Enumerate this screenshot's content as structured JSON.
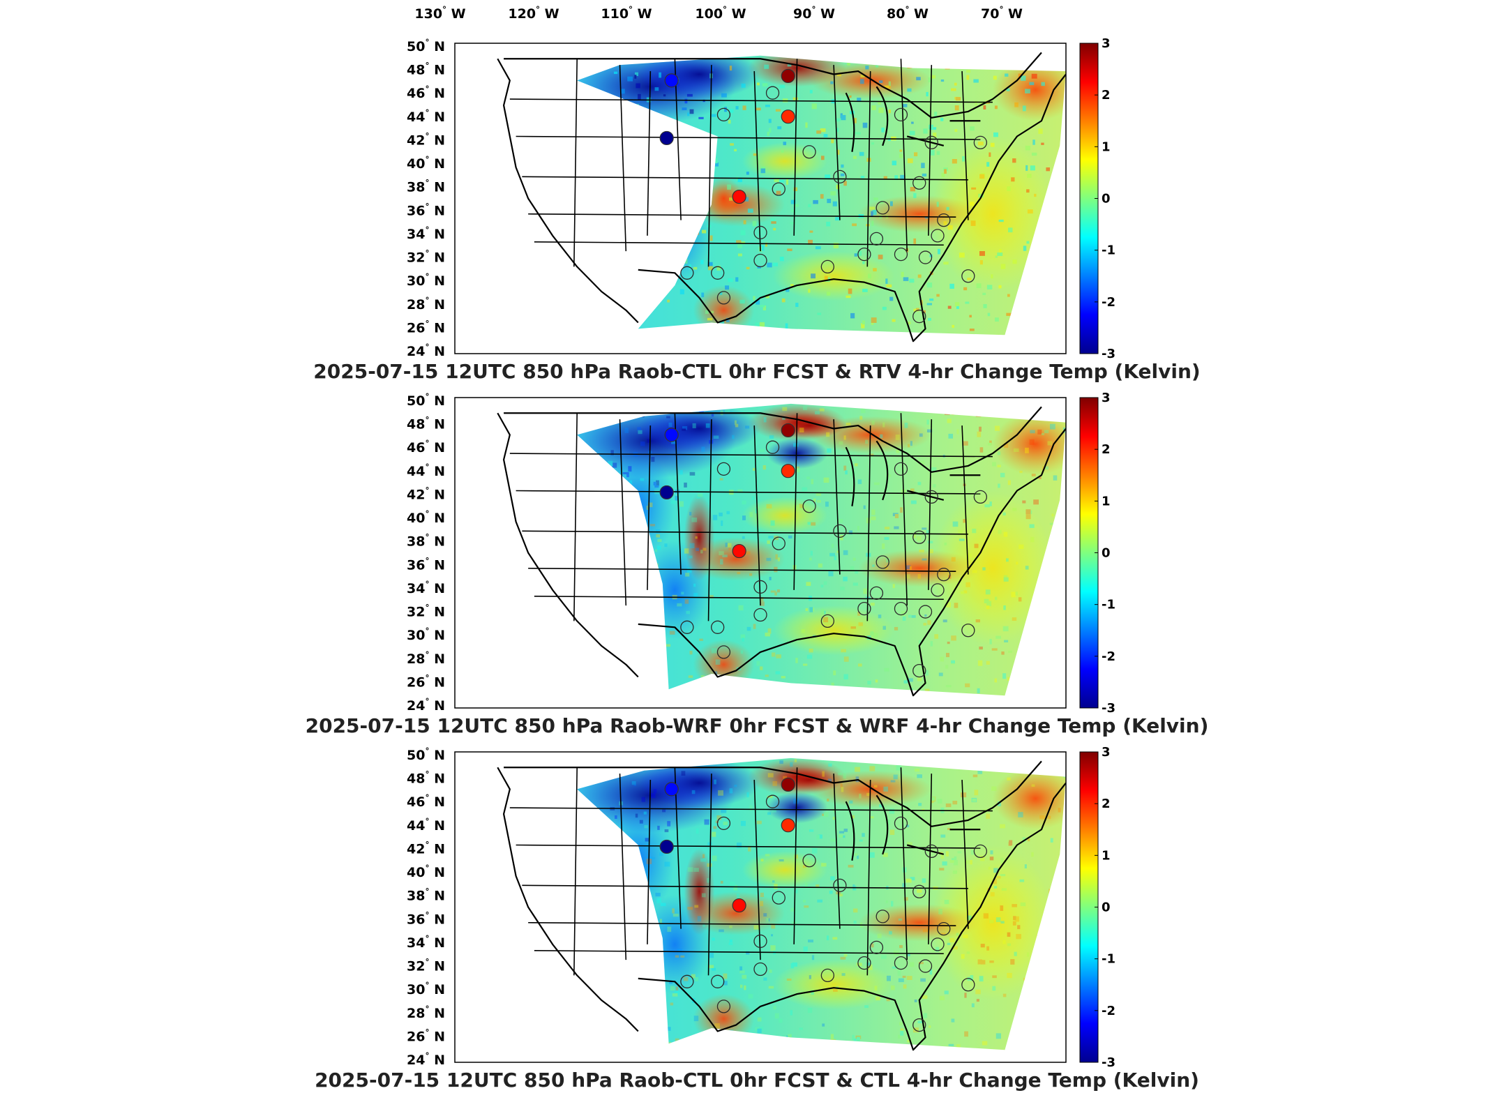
{
  "figure": {
    "longitude_labels": [
      "130",
      "120",
      "110",
      "100",
      "90",
      "80",
      "70"
    ],
    "longitude_suffix": "W",
    "latitude_labels": [
      "50",
      "48",
      "46",
      "44",
      "42",
      "40",
      "38",
      "36",
      "34",
      "32",
      "30",
      "28",
      "26",
      "24"
    ],
    "latitude_suffix": "N",
    "colorbar": {
      "ticks": [
        "3",
        "2",
        "1",
        "0",
        "-1",
        "-2",
        "-3"
      ],
      "range": [
        -3,
        3
      ],
      "colormap": "jet",
      "colors": [
        "#00008f",
        "#0000ff",
        "#007fff",
        "#00ffff",
        "#7fff7f",
        "#ffff00",
        "#ff7f00",
        "#ff0000",
        "#7f0000"
      ]
    },
    "panels": [
      {
        "title": "2025-07-15 12UTC 850 hPa Raob-CTL 0hr FCST & RTV 4-hr Change Temp (Kelvin)",
        "highlighted_stations": [
          {
            "lon": -108.4,
            "lat": 48.2,
            "value": -2.2
          },
          {
            "lon": -94.1,
            "lat": 48.6,
            "value": 2.9
          },
          {
            "lon": -94.1,
            "lat": 45.0,
            "value": 2.0
          },
          {
            "lon": -109.0,
            "lat": 43.1,
            "value": -3.0
          },
          {
            "lon": -100.1,
            "lat": 37.9,
            "value": 2.2
          }
        ]
      },
      {
        "title": "2025-07-15 12UTC 850 hPa Raob-WRF 0hr FCST & WRF 4-hr Change Temp (Kelvin)",
        "highlighted_stations": [
          {
            "lon": -108.4,
            "lat": 48.2,
            "value": -2.2
          },
          {
            "lon": -94.1,
            "lat": 48.6,
            "value": 2.9
          },
          {
            "lon": -94.1,
            "lat": 45.0,
            "value": 2.0
          },
          {
            "lon": -109.0,
            "lat": 43.1,
            "value": -3.0
          },
          {
            "lon": -100.1,
            "lat": 37.9,
            "value": 2.2
          }
        ]
      },
      {
        "title": "2025-07-15 12UTC 850 hPa Raob-CTL 0hr FCST & CTL 4-hr Change Temp (Kelvin)",
        "highlighted_stations": [
          {
            "lon": -108.4,
            "lat": 48.2,
            "value": -2.2
          },
          {
            "lon": -94.1,
            "lat": 48.6,
            "value": 2.9
          },
          {
            "lon": -94.1,
            "lat": 45.0,
            "value": 2.0
          },
          {
            "lon": -109.0,
            "lat": 43.1,
            "value": -3.0
          },
          {
            "lon": -100.1,
            "lat": 37.9,
            "value": 2.2
          }
        ]
      }
    ]
  }
}
